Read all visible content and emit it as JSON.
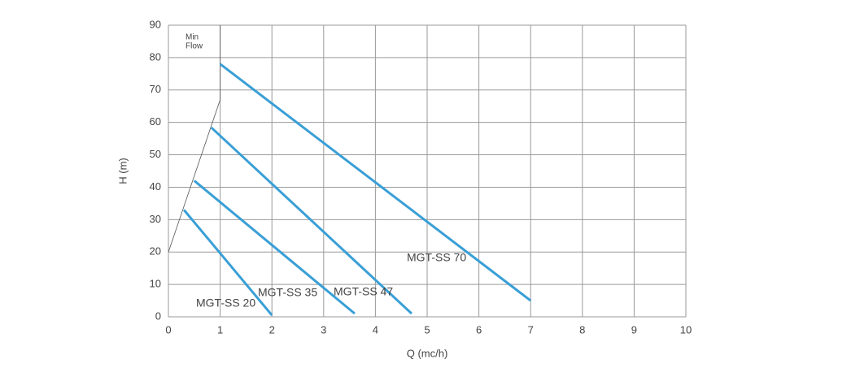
{
  "chart_data": {
    "type": "line",
    "xlabel": "Q (mc/h)",
    "ylabel": "H (m)",
    "xlim": [
      0,
      10
    ],
    "xticks": [
      0,
      1,
      2,
      3,
      4,
      5,
      6,
      7,
      8,
      9,
      10
    ],
    "ylim": [
      0,
      90
    ],
    "yticks": [
      0,
      10,
      20,
      30,
      40,
      50,
      60,
      70,
      80,
      90
    ],
    "grid": true,
    "series": [
      {
        "name": "MGT-SS 20",
        "color": "#3a9fd6",
        "x": [
          0.3,
          2.0
        ],
        "values": [
          33,
          0.5
        ]
      },
      {
        "name": "MGT-SS 35",
        "color": "#3a9fd6",
        "x": [
          0.5,
          3.6
        ],
        "values": [
          42,
          1
        ]
      },
      {
        "name": "MGT-SS 47",
        "color": "#3a9fd6",
        "x": [
          0.83,
          4.7
        ],
        "values": [
          58.4,
          1
        ]
      },
      {
        "name": "MGT-SS 70",
        "color": "#3a9fd6",
        "x": [
          1.0,
          7.0
        ],
        "values": [
          78,
          5
        ]
      }
    ],
    "min_flow": {
      "label_lines": [
        "Min",
        "Flow"
      ],
      "color": "#555555",
      "x": [
        0,
        1,
        1
      ],
      "values": [
        20,
        67,
        90
      ]
    }
  }
}
